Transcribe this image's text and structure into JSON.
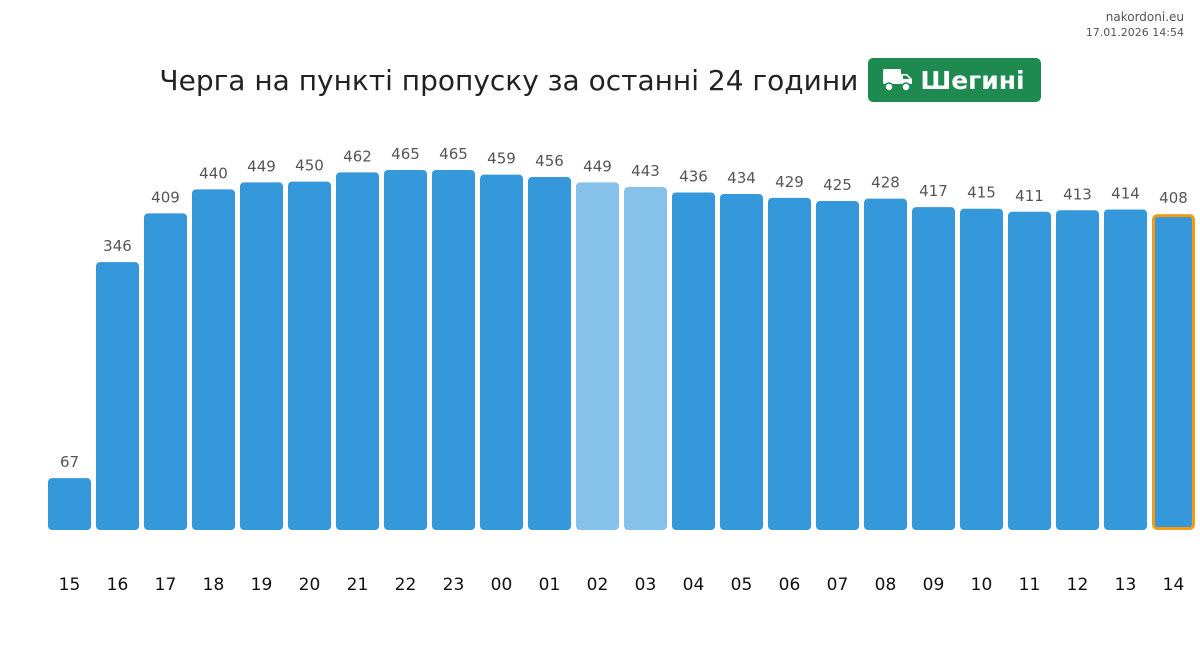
{
  "source": {
    "site": "nakordoni.eu",
    "timestamp": "17.01.2026 14:54"
  },
  "header": {
    "title": "Черга на пункті пропуску за останні 24 години",
    "badge_label": "Шегині",
    "badge_icon": "truck-icon",
    "badge_color": "#1e8a4f"
  },
  "colors": {
    "bar": "#3498db",
    "bar_light": "#85c1e9",
    "highlight_border": "#f39c12",
    "value_label": "#555555",
    "tick_label": "#111111"
  },
  "chart_data": {
    "type": "bar",
    "title": "Черга на пункті пропуску за останні 24 години",
    "xlabel": "",
    "ylabel": "",
    "categories": [
      "15",
      "16",
      "17",
      "18",
      "19",
      "20",
      "21",
      "22",
      "23",
      "00",
      "01",
      "02",
      "03",
      "04",
      "05",
      "06",
      "07",
      "08",
      "09",
      "10",
      "11",
      "12",
      "13",
      "14"
    ],
    "values": [
      67,
      346,
      409,
      440,
      449,
      450,
      462,
      465,
      465,
      459,
      456,
      449,
      443,
      436,
      434,
      429,
      425,
      428,
      417,
      415,
      411,
      413,
      414,
      408
    ],
    "light_indices": [
      11,
      12
    ],
    "highlight_index": 23,
    "ylim": [
      0,
      465
    ],
    "grid": false,
    "legend": "none",
    "data_labels": true
  }
}
